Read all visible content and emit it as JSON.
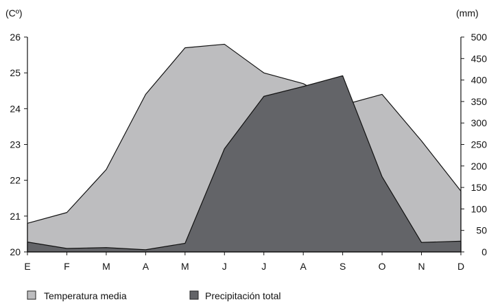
{
  "chart_data": {
    "type": "area",
    "categories": [
      "E",
      "F",
      "M",
      "A",
      "M",
      "J",
      "J",
      "A",
      "S",
      "O",
      "N",
      "D"
    ],
    "left_axis": {
      "unit_label": "(Cº)",
      "ylim": [
        20,
        26
      ],
      "ticks": [
        "20",
        "21",
        "22",
        "23",
        "24",
        "25",
        "26"
      ]
    },
    "right_axis": {
      "unit_label": "(mm)",
      "ylim": [
        0,
        500
      ],
      "ticks": [
        "0",
        "50",
        "100",
        "150",
        "200",
        "250",
        "300",
        "350",
        "400",
        "450",
        "500"
      ]
    },
    "series": [
      {
        "name": "Temperatura media",
        "axis": "left",
        "color": "#bdbdbf",
        "values": [
          20.8,
          21.1,
          22.3,
          24.4,
          25.7,
          25.8,
          25.0,
          24.7,
          24.1,
          24.4,
          23.1,
          21.7
        ]
      },
      {
        "name": "Precipitación total",
        "axis": "right",
        "color": "#636468",
        "values": [
          23,
          8,
          10,
          5,
          20,
          240,
          362,
          385,
          410,
          175,
          22,
          25
        ]
      }
    ],
    "grid": false,
    "legend_position": "bottom-left"
  }
}
